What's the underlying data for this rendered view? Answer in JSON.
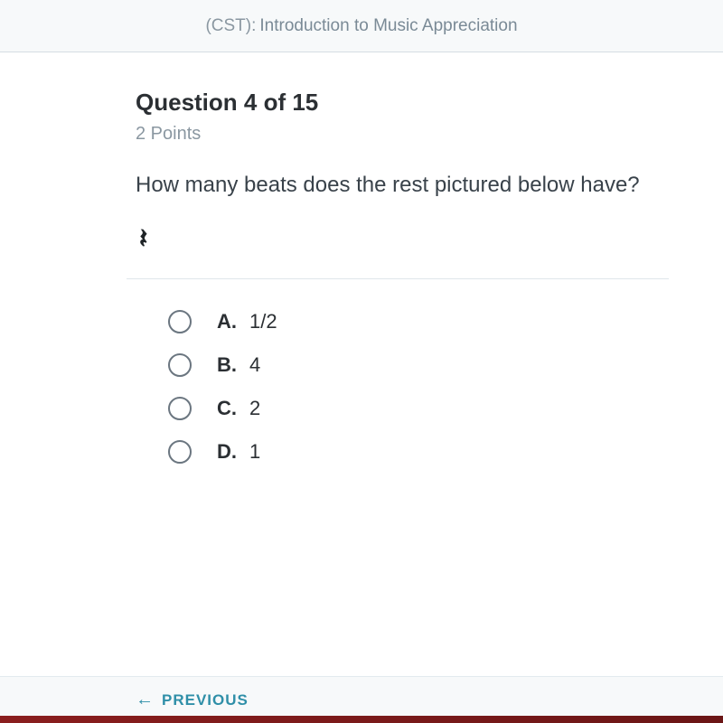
{
  "header": {
    "prefix": "(CST):",
    "title": "Introduction to Music Appreciation"
  },
  "question": {
    "number_label": "Question 4 of 15",
    "points_label": "2 Points",
    "prompt": "How many beats does the rest pictured below have?",
    "rest_glyph": "𝄽"
  },
  "options": [
    {
      "letter": "A.",
      "text": "1/2"
    },
    {
      "letter": "B.",
      "text": "4"
    },
    {
      "letter": "C.",
      "text": "2"
    },
    {
      "letter": "D.",
      "text": "1"
    }
  ],
  "nav": {
    "previous_label": "PREVIOUS"
  },
  "colors": {
    "accent": "#2f8fa8",
    "muted_text": "#8a97a1",
    "body_text": "#2b2f33",
    "divider": "#dfe6eb",
    "radio_border": "#6b7680"
  }
}
